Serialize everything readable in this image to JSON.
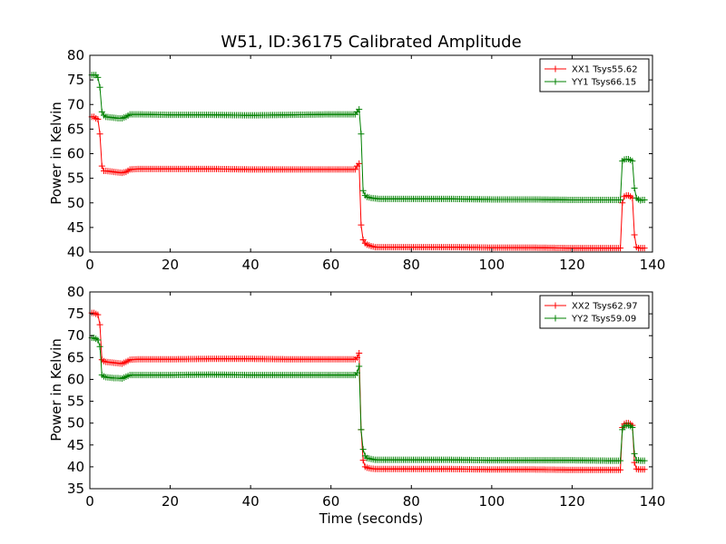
{
  "chart_data": [
    {
      "type": "line",
      "title": "W51, ID:36175 Calibrated Amplitude",
      "xlabel": "",
      "ylabel": "Power in Kelvin",
      "xlim": [
        0,
        140
      ],
      "ylim": [
        40,
        80
      ],
      "xticks": [
        0,
        20,
        40,
        60,
        80,
        100,
        120,
        140
      ],
      "yticks": [
        40,
        45,
        50,
        55,
        60,
        65,
        70,
        75,
        80
      ],
      "grid": false,
      "legend_position": "top-right",
      "marker": "+",
      "series": [
        {
          "name": "XX1 Tsys55.62",
          "color": "#ff0000",
          "x": [
            0.5,
            1.0,
            1.5,
            2.0,
            2.5,
            3.0,
            3.5,
            4,
            5,
            6,
            7,
            8,
            9,
            10,
            12,
            20,
            30,
            40,
            50,
            60,
            65,
            66,
            66.5,
            67,
            67.5,
            68,
            68.5,
            69,
            70,
            71,
            72,
            80,
            90,
            100,
            110,
            120,
            130,
            131.5,
            132,
            132.5,
            133,
            133.5,
            134,
            134.5,
            135,
            135.5,
            136,
            136.5,
            137,
            137.5,
            138
          ],
          "y": [
            67.5,
            67.5,
            67.2,
            67.0,
            64.0,
            57.5,
            56.5,
            56.5,
            56.4,
            56.3,
            56.2,
            56.1,
            56.3,
            56.8,
            56.9,
            56.9,
            56.9,
            56.8,
            56.8,
            56.8,
            56.8,
            56.8,
            57.5,
            58.0,
            45.5,
            42.5,
            41.8,
            41.5,
            41.2,
            41.0,
            41.0,
            41.0,
            41.0,
            40.9,
            40.9,
            40.8,
            40.8,
            40.8,
            40.8,
            50.0,
            51.3,
            51.5,
            51.5,
            51.3,
            51.0,
            43.5,
            41.0,
            40.8,
            40.8,
            40.8,
            40.8
          ]
        },
        {
          "name": "YY1 Tsys66.15",
          "color": "#008000",
          "x": [
            0.5,
            1.0,
            1.5,
            2.0,
            2.5,
            3.0,
            3.5,
            4,
            5,
            6,
            7,
            8,
            9,
            10,
            12,
            20,
            30,
            40,
            50,
            60,
            65,
            66,
            66.5,
            67,
            67.5,
            68,
            68.5,
            69,
            70,
            71,
            72,
            80,
            90,
            100,
            110,
            120,
            130,
            131.5,
            132,
            132.5,
            133,
            133.5,
            134,
            134.5,
            135,
            135.5,
            136,
            136.5,
            137,
            137.5,
            138
          ],
          "y": [
            76.0,
            76.0,
            76.0,
            75.5,
            73.5,
            68.5,
            67.8,
            67.5,
            67.4,
            67.3,
            67.2,
            67.2,
            67.5,
            68.0,
            68.0,
            67.9,
            67.9,
            67.8,
            67.9,
            68.0,
            68.0,
            68.0,
            68.5,
            69.0,
            64.0,
            52.5,
            51.5,
            51.2,
            51.0,
            50.9,
            50.8,
            50.8,
            50.8,
            50.7,
            50.7,
            50.6,
            50.6,
            50.6,
            50.6,
            58.5,
            58.8,
            58.9,
            58.9,
            58.7,
            58.5,
            53.0,
            51.0,
            50.7,
            50.5,
            50.6,
            50.6
          ]
        }
      ]
    },
    {
      "type": "line",
      "title": "",
      "xlabel": "Time (seconds)",
      "ylabel": "Power in Kelvin",
      "xlim": [
        0,
        140
      ],
      "ylim": [
        35,
        80
      ],
      "xticks": [
        0,
        20,
        40,
        60,
        80,
        100,
        120,
        140
      ],
      "yticks": [
        35,
        40,
        45,
        50,
        55,
        60,
        65,
        70,
        75,
        80
      ],
      "grid": false,
      "legend_position": "top-right",
      "marker": "+",
      "series": [
        {
          "name": "XX2 Tsys62.97",
          "color": "#ff0000",
          "x": [
            0.5,
            1.0,
            1.5,
            2.0,
            2.5,
            3.0,
            3.5,
            4,
            5,
            6,
            7,
            8,
            9,
            10,
            12,
            20,
            30,
            40,
            50,
            60,
            65,
            66,
            66.5,
            67,
            67.5,
            68,
            68.5,
            69,
            70,
            71,
            72,
            80,
            90,
            100,
            110,
            120,
            130,
            131.5,
            132,
            132.5,
            133,
            133.5,
            134,
            134.5,
            135,
            135.5,
            136,
            136.5,
            137,
            137.5,
            138
          ],
          "y": [
            75.2,
            75.2,
            75.0,
            74.8,
            72.5,
            64.5,
            64.2,
            64.0,
            63.9,
            63.8,
            63.7,
            63.6,
            64.0,
            64.5,
            64.6,
            64.6,
            64.7,
            64.7,
            64.6,
            64.6,
            64.6,
            64.6,
            65.0,
            66.0,
            48.5,
            41.5,
            40.0,
            39.8,
            39.6,
            39.5,
            39.5,
            39.5,
            39.5,
            39.4,
            39.4,
            39.3,
            39.3,
            39.3,
            39.3,
            49.0,
            49.8,
            50.0,
            50.0,
            49.8,
            49.5,
            41.0,
            39.5,
            39.4,
            39.4,
            39.4,
            39.4
          ]
        },
        {
          "name": "YY2 Tsys59.09",
          "color": "#008000",
          "x": [
            0.5,
            1.0,
            1.5,
            2.0,
            2.5,
            3.0,
            3.5,
            4,
            5,
            6,
            7,
            8,
            9,
            10,
            12,
            20,
            30,
            40,
            50,
            60,
            65,
            66,
            66.5,
            67,
            67.5,
            68,
            68.5,
            69,
            70,
            71,
            72,
            80,
            90,
            100,
            110,
            120,
            130,
            131.5,
            132,
            132.5,
            133,
            133.5,
            134,
            134.5,
            135,
            135.5,
            136,
            136.5,
            137,
            137.5,
            138
          ],
          "y": [
            69.5,
            69.5,
            69.3,
            69.0,
            67.5,
            61.0,
            60.7,
            60.5,
            60.4,
            60.3,
            60.3,
            60.2,
            60.6,
            61.0,
            61.0,
            61.0,
            61.1,
            61.0,
            61.0,
            61.0,
            61.0,
            61.0,
            61.5,
            63.0,
            48.5,
            44.0,
            42.5,
            42.0,
            41.8,
            41.6,
            41.6,
            41.6,
            41.6,
            41.5,
            41.5,
            41.5,
            41.4,
            41.4,
            41.4,
            48.5,
            49.3,
            49.5,
            49.5,
            49.3,
            49.0,
            43.0,
            41.5,
            41.5,
            41.4,
            41.4,
            41.4
          ]
        }
      ]
    }
  ]
}
